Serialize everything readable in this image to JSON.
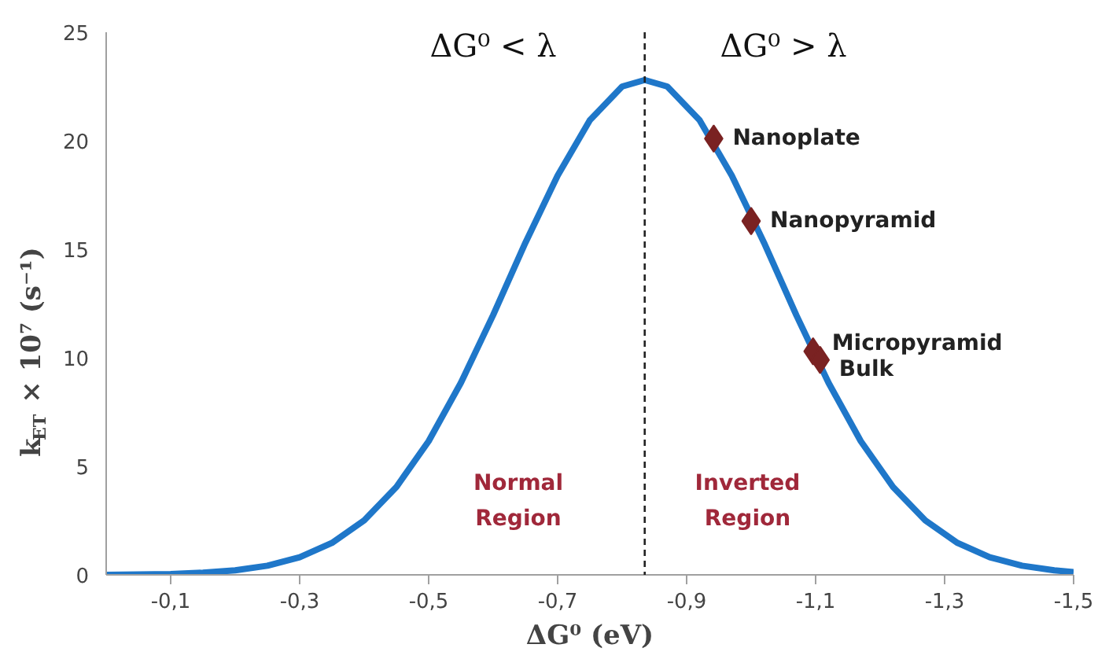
{
  "chart_data": {
    "type": "line",
    "xlabel": "ΔG⁰ (eV)",
    "ylabel": "k$_{ET}$ × 10⁷ (s⁻¹)",
    "x": [
      0,
      -0.05,
      -0.1,
      -0.15,
      -0.2,
      -0.25,
      -0.3,
      -0.35,
      -0.4,
      -0.45,
      -0.5,
      -0.55,
      -0.6,
      -0.65,
      -0.7,
      -0.75,
      -0.8,
      -0.835,
      -0.87,
      -0.92,
      -0.97,
      -1.02,
      -1.07,
      -1.12,
      -1.17,
      -1.22,
      -1.27,
      -1.32,
      -1.37,
      -1.42,
      -1.47,
      -1.5
    ],
    "series": [
      {
        "color": "#1f77c9",
        "values": [
          0.0,
          0.02,
          0.04,
          0.1,
          0.21,
          0.42,
          0.81,
          1.47,
          2.51,
          4.05,
          6.16,
          8.85,
          11.97,
          15.3,
          18.4,
          20.95,
          22.5,
          22.8,
          22.5,
          20.95,
          18.4,
          15.3,
          11.97,
          8.85,
          6.16,
          4.05,
          2.51,
          1.47,
          0.81,
          0.42,
          0.21,
          0.13
        ]
      },
      {
        "type": "scatter",
        "color": "#7a2222",
        "marker": "diamond",
        "x": [
          -0.942,
          -1.0,
          -1.096,
          -1.107
        ],
        "values": [
          20.1,
          16.3,
          10.3,
          9.9
        ]
      }
    ],
    "xlim": [
      0,
      -1.5
    ],
    "ylim": [
      0,
      25
    ],
    "xticks": [
      {
        "value": -0.1,
        "label": "-0,1"
      },
      {
        "value": -0.3,
        "label": "-0,3"
      },
      {
        "value": -0.5,
        "label": "-0,5"
      },
      {
        "value": -0.7,
        "label": "-0,7"
      },
      {
        "value": -0.9,
        "label": "-0,9"
      },
      {
        "value": -1.1,
        "label": "-1,1"
      },
      {
        "value": -1.3,
        "label": "-1,3"
      },
      {
        "value": -1.5,
        "label": "-1,5"
      }
    ],
    "yticks": [
      0,
      5,
      10,
      15,
      20,
      25
    ],
    "grid": false,
    "ref_lines": [
      {
        "axis": "x",
        "value": -0.835,
        "line_style": "dashed",
        "color": "#222222"
      }
    ],
    "annotations": [
      {
        "text": "Nanoplate",
        "x": -0.942,
        "y": 20.1
      },
      {
        "text": "Nanopyramid",
        "x": -1.0,
        "y": 16.3
      },
      {
        "text": "Micropyramid",
        "x": -1.096,
        "y": 10.3
      },
      {
        "text": "Bulk",
        "x": -1.107,
        "y": 9.9
      },
      "Normal\nRegion",
      "Inverted\nRegion",
      "ΔG⁰ < λ",
      "ΔG⁰ > λ"
    ]
  }
}
